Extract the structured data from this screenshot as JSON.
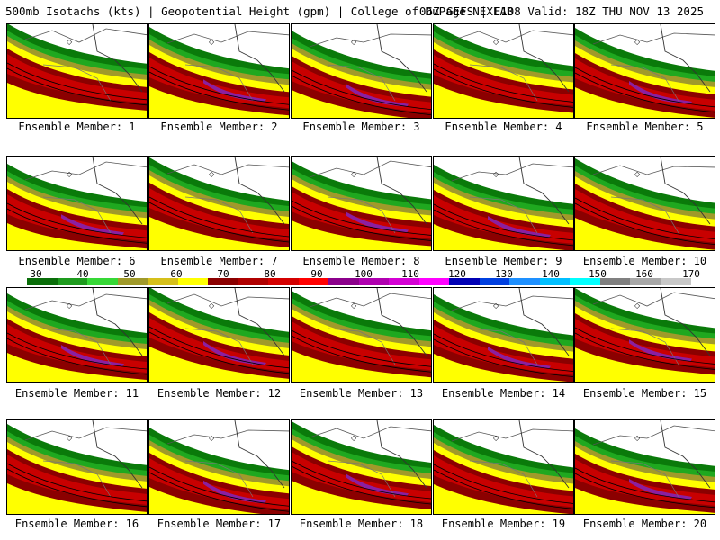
{
  "header": {
    "left": "500mb Isotachs (kts) | Geopotential Height (gpm) | College of DuPage NEXLAB",
    "right": "06Z GEFS | F108 Valid: 18Z THU NOV 13 2025"
  },
  "members": [
    "Ensemble Member: 1",
    "Ensemble Member: 2",
    "Ensemble Member: 3",
    "Ensemble Member: 4",
    "Ensemble Member: 5",
    "Ensemble Member: 6",
    "Ensemble Member: 7",
    "Ensemble Member: 8",
    "Ensemble Member: 9",
    "Ensemble Member: 10",
    "Ensemble Member: 11",
    "Ensemble Member: 12",
    "Ensemble Member: 13",
    "Ensemble Member: 14",
    "Ensemble Member: 15",
    "Ensemble Member: 16",
    "Ensemble Member: 17",
    "Ensemble Member: 18",
    "Ensemble Member: 19",
    "Ensemble Member: 20"
  ],
  "colorbar": {
    "ticks": [
      "30",
      "40",
      "50",
      "60",
      "70",
      "80",
      "90",
      "100",
      "110",
      "120",
      "130",
      "140",
      "150",
      "160",
      "170"
    ],
    "colors": [
      "#0a6e0a",
      "#1e9b1e",
      "#36d836",
      "#a09a2a",
      "#d6c01a",
      "#ffff00",
      "#8b0000",
      "#b00000",
      "#d40000",
      "#ff0000",
      "#8b008b",
      "#b000b0",
      "#d400d4",
      "#ff00ff",
      "#0000b4",
      "#0040e0",
      "#1e90ff",
      "#00bfff",
      "#00ffff",
      "#808080",
      "#a8a8a8",
      "#c8c8c8"
    ]
  },
  "panel_colors": {
    "green_dark": "#0a7a0a",
    "green": "#1fa81f",
    "green_light": "#3ad83a",
    "olive": "#a09a2a",
    "yellow_dark": "#d6c01a",
    "yellow": "#ffff00",
    "red_dark": "#8b0000",
    "red": "#c80000",
    "red_bright": "#ff0000",
    "purple": "#8b1fa0"
  }
}
